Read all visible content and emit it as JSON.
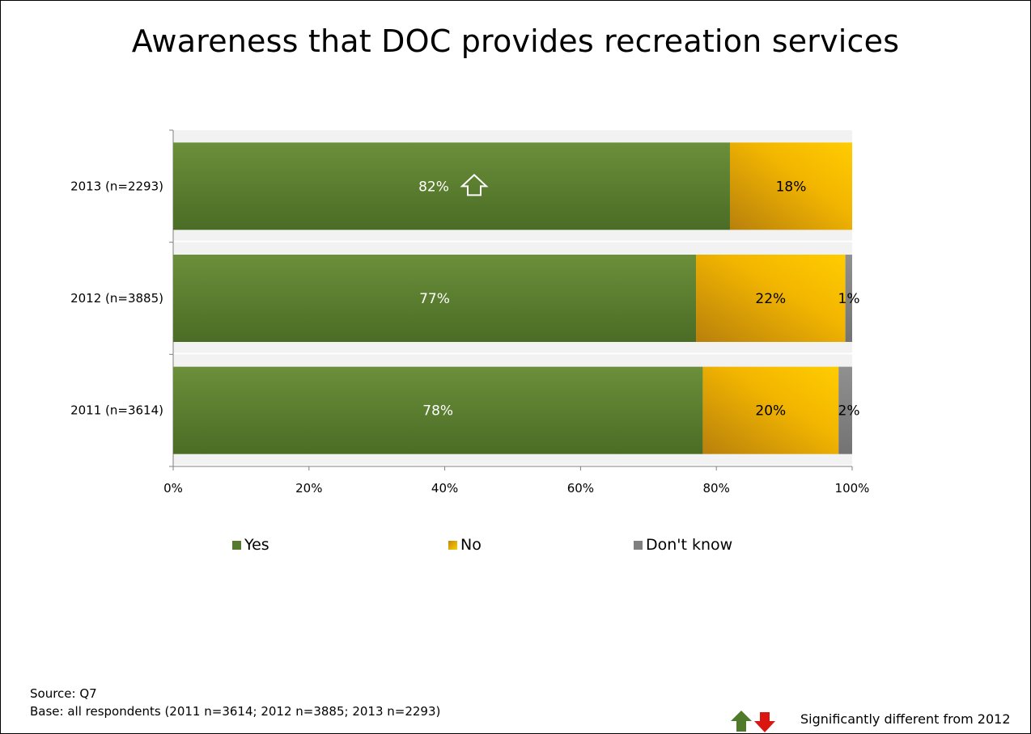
{
  "slide": {
    "title": "Awareness that DOC provides recreation services",
    "source": "Source: Q7",
    "base": "Base: all respondents (2011 n=3614; 2012 n=3885; 2013 n=2293)",
    "significance_note": "Significantly different from 2012",
    "significance_icons": [
      "arrow-up-icon",
      "arrow-down-icon"
    ]
  },
  "chart_data": {
    "type": "bar",
    "orientation": "horizontal",
    "stacked": "100%",
    "categories": [
      "2013 (n=2293)",
      "2012 (n=3885)",
      "2011 (n=3614)"
    ],
    "series": [
      {
        "name": "Yes",
        "values": [
          82,
          77,
          78
        ],
        "labels": [
          "82%",
          "77%",
          "78%"
        ],
        "color": "#567a2b"
      },
      {
        "name": "No",
        "values": [
          18,
          22,
          20
        ],
        "labels": [
          "18%",
          "22%",
          "20%"
        ],
        "color": "#e6a800"
      },
      {
        "name": "Don't know",
        "values": [
          0,
          1,
          2
        ],
        "labels": [
          "",
          "1%",
          "2%"
        ],
        "color": "#808080"
      }
    ],
    "significant_increase": {
      "category": "2013 (n=2293)",
      "series": "Yes",
      "icon": "arrow-up-icon"
    },
    "xlim": [
      0,
      100
    ],
    "xticks": [
      "0%",
      "20%",
      "40%",
      "60%",
      "80%",
      "100%"
    ],
    "grid": false,
    "legend_position": "bottom"
  }
}
